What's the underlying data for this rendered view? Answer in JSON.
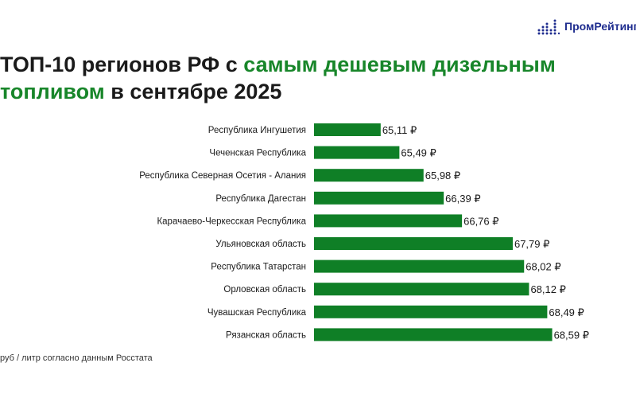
{
  "logo": {
    "text": "ПромРейтинг",
    "icon": "bar-dots-icon",
    "color": "#1f2d8f"
  },
  "title": {
    "part1": "ТОП-10 регионов РФ с ",
    "accent_part1": "самым дешевым дизельным",
    "accent_part2": "топливом",
    "part2": " в сентябре 2025"
  },
  "source": "руб / литр согласно данным Росстата",
  "colors": {
    "bar": "#0f7f26",
    "accent": "#18862a",
    "text": "#1a1a1a"
  },
  "chart_data": {
    "type": "bar",
    "orientation": "horizontal",
    "categories": [
      "Республика Ингушетия",
      "Чеченская Республика",
      "Республика Северная Осетия - Алания",
      "Республика Дагестан",
      "Карачаево-Черкесская Республика",
      "Ульяновская область",
      "Республика Татарстан",
      "Орловская область",
      "Чувашская Республика",
      "Рязанская область"
    ],
    "values": [
      65.11,
      65.49,
      65.98,
      66.39,
      66.76,
      67.79,
      68.02,
      68.12,
      68.49,
      68.59
    ],
    "value_labels": [
      "65,11 ₽",
      "65,49 ₽",
      "65,98 ₽",
      "66,39 ₽",
      "66,76 ₽",
      "67,79 ₽",
      "68,02 ₽",
      "68,12 ₽",
      "68,49 ₽",
      "68,59 ₽"
    ],
    "xlim": [
      60,
      70
    ],
    "grid": false,
    "legend": "none"
  }
}
